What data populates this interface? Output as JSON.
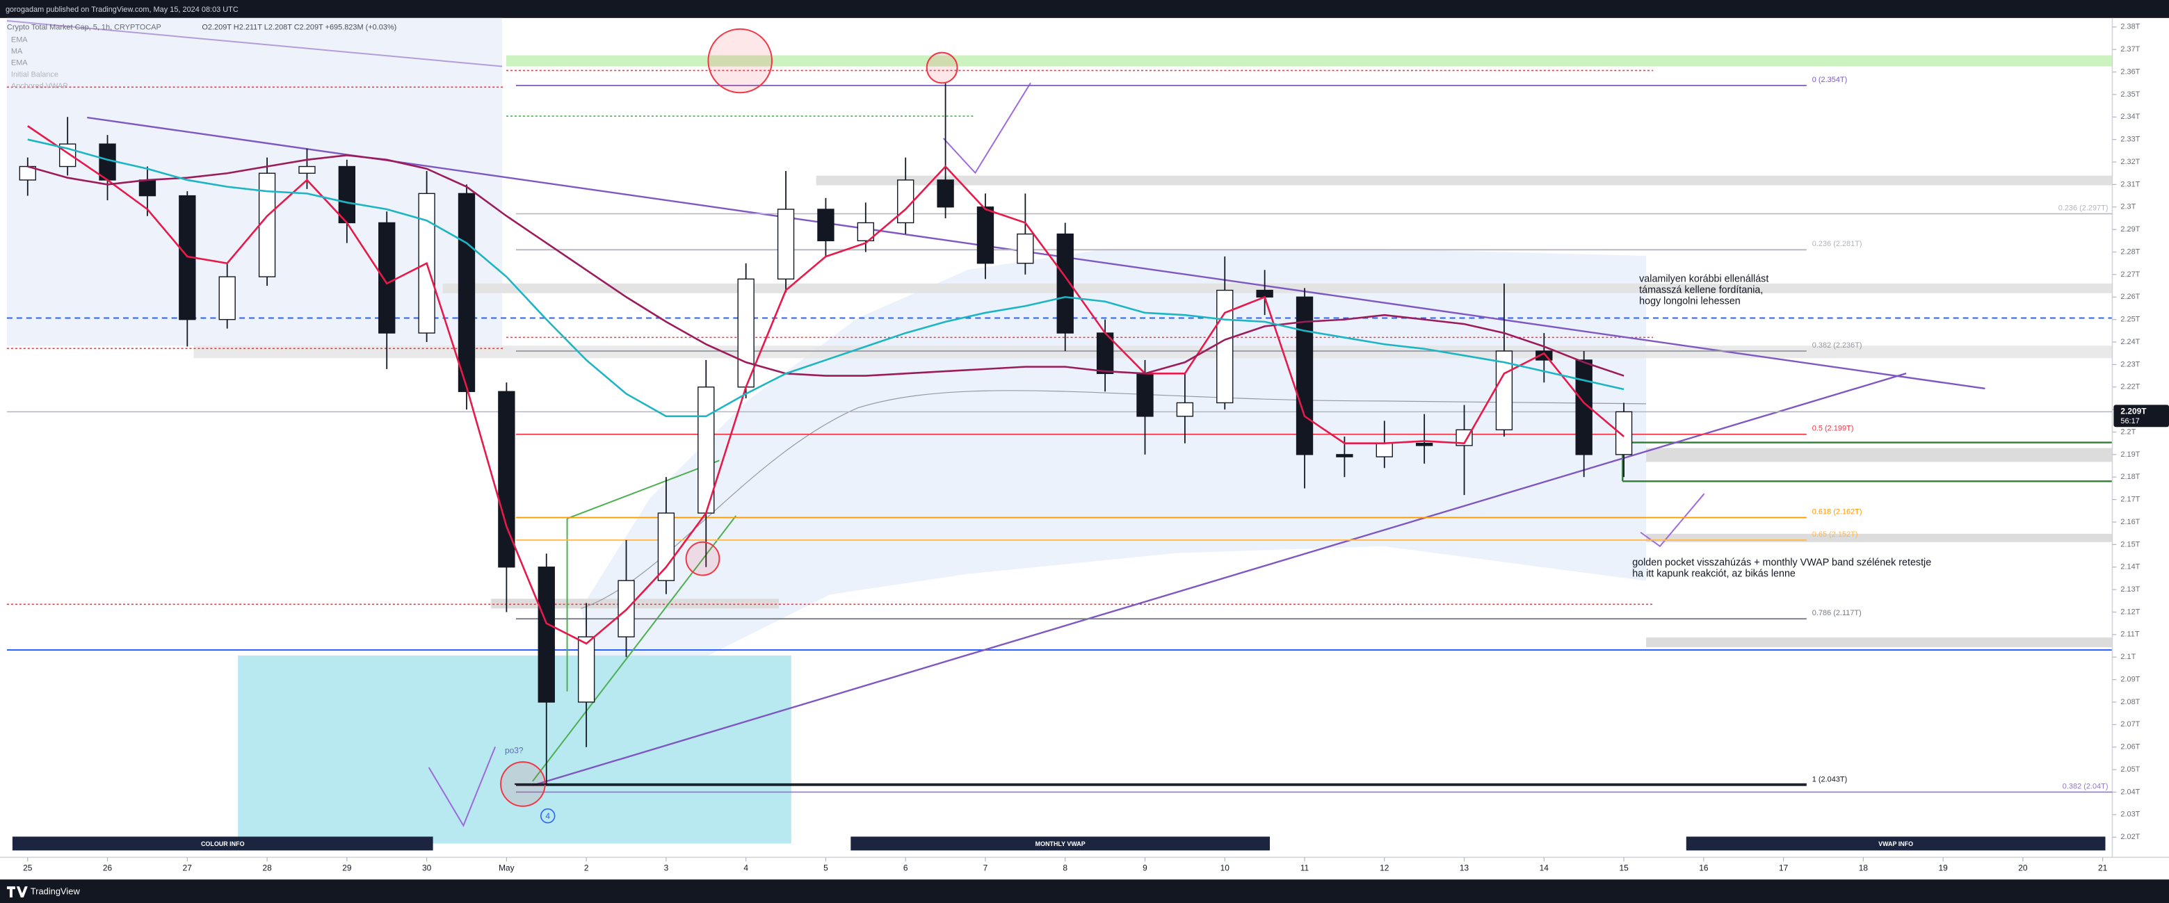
{
  "header": {
    "publisher": "gorogadam published on TradingView.com, May 15, 2024 08:03 UTC",
    "footer": "TradingView"
  },
  "chart_data": {
    "type": "candlestick",
    "title": "Crypto Total Market Cap, 5, 1h, CRYPTOCAP",
    "subtitle": "O2.209T H2.211T L2.208T C2.209T +695.823M (+0.03%)",
    "candle_colors": {
      "up": "#ffffff",
      "down": "#131722",
      "border": "#131722"
    },
    "x": [
      0,
      0.5,
      1,
      1.5,
      2,
      2.5,
      3,
      3.5,
      4,
      4.5,
      5,
      5.5,
      6,
      6.5,
      7,
      7.5,
      8,
      8.5,
      9,
      9.5,
      10,
      10.5,
      11,
      11.5,
      12,
      12.5,
      13,
      13.5,
      14,
      14.5,
      15,
      15.5,
      16,
      16.5,
      17,
      17.5,
      18,
      18.5,
      19,
      19.5,
      20
    ],
    "open": [
      2.312,
      2.318,
      2.328,
      2.312,
      2.305,
      2.25,
      2.269,
      2.315,
      2.318,
      2.293,
      2.244,
      2.306,
      2.218,
      2.14,
      2.08,
      2.109,
      2.134,
      2.164,
      2.22,
      2.268,
      2.299,
      2.285,
      2.293,
      2.312,
      2.3,
      2.275,
      2.288,
      2.244,
      2.226,
      2.207,
      2.213,
      2.263,
      2.26,
      2.19,
      2.189,
      2.195,
      2.194,
      2.201,
      2.236,
      2.232,
      2.19
    ],
    "high": [
      2.322,
      2.34,
      2.332,
      2.318,
      2.307,
      2.275,
      2.322,
      2.326,
      2.321,
      2.298,
      2.316,
      2.31,
      2.222,
      2.146,
      2.124,
      2.152,
      2.18,
      2.232,
      2.275,
      2.316,
      2.304,
      2.302,
      2.322,
      2.355,
      2.306,
      2.306,
      2.293,
      2.25,
      2.232,
      2.226,
      2.278,
      2.272,
      2.264,
      2.198,
      2.205,
      2.208,
      2.212,
      2.266,
      2.244,
      2.236,
      2.213
    ],
    "low": [
      2.305,
      2.314,
      2.303,
      2.296,
      2.238,
      2.246,
      2.265,
      2.308,
      2.284,
      2.228,
      2.24,
      2.21,
      2.12,
      2.043,
      2.06,
      2.1,
      2.128,
      2.14,
      2.215,
      2.262,
      2.278,
      2.28,
      2.288,
      2.295,
      2.268,
      2.27,
      2.236,
      2.218,
      2.19,
      2.195,
      2.21,
      2.252,
      2.175,
      2.18,
      2.184,
      2.186,
      2.172,
      2.198,
      2.222,
      2.18,
      2.18
    ],
    "close": [
      2.318,
      2.328,
      2.312,
      2.305,
      2.25,
      2.269,
      2.315,
      2.318,
      2.293,
      2.244,
      2.306,
      2.218,
      2.14,
      2.08,
      2.109,
      2.134,
      2.164,
      2.22,
      2.268,
      2.299,
      2.285,
      2.293,
      2.312,
      2.3,
      2.275,
      2.288,
      2.244,
      2.226,
      2.207,
      2.213,
      2.263,
      2.26,
      2.19,
      2.189,
      2.195,
      2.194,
      2.201,
      2.236,
      2.232,
      2.19,
      2.209
    ],
    "series": [
      {
        "name": "EMA",
        "color": "#e8194a",
        "values": [
          2.336,
          2.324,
          2.312,
          2.299,
          2.278,
          2.275,
          2.296,
          2.312,
          2.293,
          2.266,
          2.275,
          2.22,
          2.158,
          2.115,
          2.106,
          2.121,
          2.14,
          2.164,
          2.22,
          2.263,
          2.278,
          2.284,
          2.299,
          2.318,
          2.299,
          2.293,
          2.269,
          2.244,
          2.226,
          2.226,
          2.253,
          2.26,
          2.207,
          2.195,
          2.195,
          2.196,
          2.195,
          2.226,
          2.235,
          2.213,
          2.198
        ]
      },
      {
        "name": "MA",
        "color": "#9c1b5a",
        "values": [
          2.318,
          2.313,
          2.31,
          2.312,
          2.313,
          2.315,
          2.318,
          2.321,
          2.323,
          2.321,
          2.317,
          2.309,
          2.296,
          2.284,
          2.272,
          2.26,
          2.249,
          2.239,
          2.231,
          2.226,
          2.225,
          2.225,
          2.226,
          2.227,
          2.228,
          2.229,
          2.229,
          2.227,
          2.226,
          2.231,
          2.241,
          2.247,
          2.249,
          2.25,
          2.252,
          2.25,
          2.248,
          2.244,
          2.238,
          2.231,
          2.225
        ]
      },
      {
        "name": "EMA",
        "color": "#1cb5c4",
        "values": [
          2.33,
          2.326,
          2.321,
          2.317,
          2.312,
          2.309,
          2.307,
          2.306,
          2.302,
          2.299,
          2.294,
          2.284,
          2.269,
          2.25,
          2.232,
          2.217,
          2.207,
          2.207,
          2.217,
          2.226,
          2.232,
          2.238,
          2.244,
          2.249,
          2.253,
          2.256,
          2.26,
          2.258,
          2.253,
          2.252,
          2.25,
          2.249,
          2.245,
          2.242,
          2.239,
          2.237,
          2.234,
          2.231,
          2.227,
          2.223,
          2.219
        ]
      }
    ],
    "legend_extra": [
      "Initial Balance",
      "Anchored VWAP"
    ],
    "xlim": [
      -0.26,
      26.12
    ],
    "xticks": [
      {
        "value": 0,
        "label": "25"
      },
      {
        "value": 1,
        "label": "26"
      },
      {
        "value": 2,
        "label": "27"
      },
      {
        "value": 3,
        "label": "28"
      },
      {
        "value": 4,
        "label": "29"
      },
      {
        "value": 5,
        "label": "30"
      },
      {
        "value": 6,
        "label": "May"
      },
      {
        "value": 7,
        "label": "2"
      },
      {
        "value": 8,
        "label": "3"
      },
      {
        "value": 9,
        "label": "4"
      },
      {
        "value": 10,
        "label": "5"
      },
      {
        "value": 11,
        "label": "6"
      },
      {
        "value": 12,
        "label": "7"
      },
      {
        "value": 13,
        "label": "8"
      },
      {
        "value": 14,
        "label": "9"
      },
      {
        "value": 15,
        "label": "10"
      },
      {
        "value": 16,
        "label": "11"
      },
      {
        "value": 17,
        "label": "12"
      },
      {
        "value": 18,
        "label": "13"
      },
      {
        "value": 19,
        "label": "14"
      },
      {
        "value": 20,
        "label": "15"
      },
      {
        "value": 21,
        "label": "16"
      },
      {
        "value": 22,
        "label": "17"
      },
      {
        "value": 23,
        "label": "18"
      },
      {
        "value": 24,
        "label": "19"
      },
      {
        "value": 25,
        "label": "20"
      },
      {
        "value": 26,
        "label": "21"
      }
    ],
    "ylim": [
      2.011,
      2.384
    ],
    "yticks": [
      {
        "value": 2.02,
        "label": "2.02T"
      },
      {
        "value": 2.03,
        "label": "2.03T"
      },
      {
        "value": 2.04,
        "label": "2.04T"
      },
      {
        "value": 2.05,
        "label": "2.05T"
      },
      {
        "value": 2.06,
        "label": "2.06T"
      },
      {
        "value": 2.07,
        "label": "2.07T"
      },
      {
        "value": 2.08,
        "label": "2.08T"
      },
      {
        "value": 2.09,
        "label": "2.09T"
      },
      {
        "value": 2.1,
        "label": "2.1T"
      },
      {
        "value": 2.11,
        "label": "2.11T"
      },
      {
        "value": 2.12,
        "label": "2.12T"
      },
      {
        "value": 2.13,
        "label": "2.13T"
      },
      {
        "value": 2.14,
        "label": "2.14T"
      },
      {
        "value": 2.15,
        "label": "2.15T"
      },
      {
        "value": 2.16,
        "label": "2.16T"
      },
      {
        "value": 2.17,
        "label": "2.17T"
      },
      {
        "value": 2.18,
        "label": "2.18T"
      },
      {
        "value": 2.19,
        "label": "2.19T"
      },
      {
        "value": 2.2,
        "label": "2.2T"
      },
      {
        "value": 2.21,
        "label": "2.21T"
      },
      {
        "value": 2.22,
        "label": "2.22T"
      },
      {
        "value": 2.23,
        "label": "2.23T"
      },
      {
        "value": 2.24,
        "label": "2.24T"
      },
      {
        "value": 2.25,
        "label": "2.25T"
      },
      {
        "value": 2.26,
        "label": "2.26T"
      },
      {
        "value": 2.27,
        "label": "2.27T"
      },
      {
        "value": 2.28,
        "label": "2.28T"
      },
      {
        "value": 2.29,
        "label": "2.29T"
      },
      {
        "value": 2.3,
        "label": "2.3T"
      },
      {
        "value": 2.31,
        "label": "2.31T"
      },
      {
        "value": 2.32,
        "label": "2.32T"
      },
      {
        "value": 2.33,
        "label": "2.33T"
      },
      {
        "value": 2.34,
        "label": "2.34T"
      },
      {
        "value": 2.35,
        "label": "2.35T"
      },
      {
        "value": 2.36,
        "label": "2.36T"
      },
      {
        "value": 2.37,
        "label": "2.37T"
      },
      {
        "value": 2.38,
        "label": "2.38T"
      }
    ],
    "last_price": {
      "value": 2.209,
      "label": "2.209T"
    },
    "countdown": "56:17",
    "fib_levels": [
      {
        "value": 2.354,
        "label": "0 (2.354T)",
        "color": "#7e57c2"
      },
      {
        "value": 2.281,
        "label": "0.236 (2.281T)",
        "color": "#b2b5be"
      },
      {
        "value": 2.236,
        "label": "0.382 (2.236T)",
        "color": "#9598a1"
      },
      {
        "value": 2.199,
        "label": "0.5 (2.199T)",
        "color": "#f23645"
      },
      {
        "value": 2.162,
        "label": "0.618 (2.162T)",
        "color": "#ff9800"
      },
      {
        "value": 2.152,
        "label": "0.65 (2.152T)",
        "color": "#ffb74d"
      },
      {
        "value": 2.117,
        "label": "0.786 (2.117T)",
        "color": "#787b86"
      },
      {
        "value": 2.043,
        "label": "1 (2.043T)",
        "color": "#131722"
      }
    ],
    "fib_levels_right": [
      {
        "value": 2.297,
        "label": "0.236 (2.297T)",
        "color": "#b2b5be"
      },
      {
        "value": 2.04,
        "label": "0.382 (2.04T)",
        "color": "#9575cd"
      }
    ],
    "notes": [
      {
        "lines": [
          "valamilyen korábbi ellenállást",
          "támasszá kellene fordítania,",
          "hogy longolni lehessen"
        ]
      },
      {
        "lines": [
          "golden pocket visszahúzás + monthly VWAP band szélének retestje",
          "ha itt kapunk reakciót, az bikás lenne"
        ]
      }
    ],
    "buttons": [
      "COLOUR INFO",
      "MONTHLY VWAP",
      "VWAP INFO"
    ],
    "marks": [
      "po3?",
      "4"
    ]
  }
}
